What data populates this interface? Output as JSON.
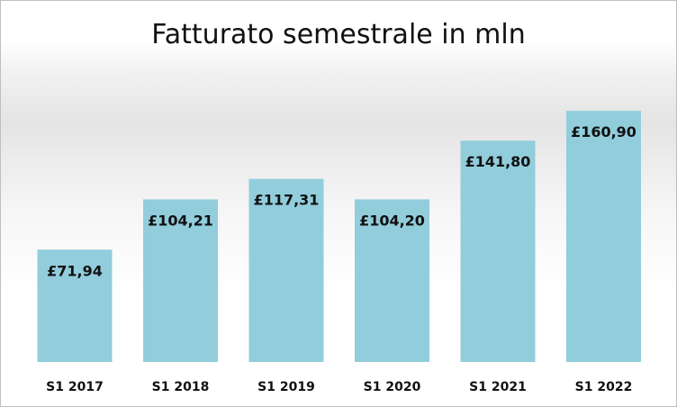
{
  "chart_data": {
    "type": "bar",
    "title": "Fatturato semestrale in mln",
    "xlabel": "",
    "ylabel": "",
    "categories": [
      "S1 2017",
      "S1 2018",
      "S1 2019",
      "S1 2020",
      "S1 2021",
      "S1 2022"
    ],
    "values": [
      71.94,
      104.21,
      117.31,
      104.2,
      141.8,
      160.9
    ],
    "data_labels": [
      "£71,94",
      "£104,21",
      "£117,31",
      "£104,20",
      "£141,80",
      "£160,90"
    ],
    "ylim": [
      0,
      180
    ],
    "grid": false,
    "legend": "none",
    "colors": {
      "bar": "#92cddc",
      "text": "#111111"
    }
  }
}
